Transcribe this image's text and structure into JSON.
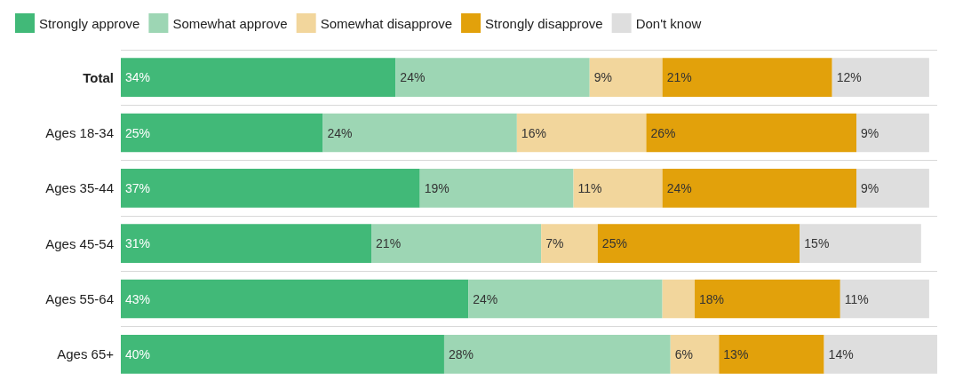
{
  "chart_data": {
    "type": "bar",
    "orientation": "horizontal",
    "stacked": true,
    "categories": [
      "Total",
      "Ages 18-34",
      "Ages 35-44",
      "Ages 45-54",
      "Ages 55-64",
      "Ages 65+"
    ],
    "series": [
      {
        "name": "Strongly approve",
        "color": "#41b978",
        "values": [
          34,
          25,
          37,
          31,
          43,
          40
        ],
        "value_labels": [
          "34%",
          "25%",
          "37%",
          "31%",
          "43%",
          "40%"
        ]
      },
      {
        "name": "Somewhat approve",
        "color": "#9dd6b4",
        "values": [
          24,
          24,
          19,
          21,
          24,
          28
        ],
        "value_labels": [
          "24%",
          "24%",
          "19%",
          "21%",
          "24%",
          "28%"
        ]
      },
      {
        "name": "Somewhat disapprove",
        "color": "#f2d69c",
        "values": [
          9,
          16,
          11,
          7,
          4,
          6
        ],
        "value_labels": [
          "9%",
          "16%",
          "11%",
          "7%",
          null,
          "6%"
        ]
      },
      {
        "name": "Strongly disapprove",
        "color": "#e2a10b",
        "values": [
          21,
          26,
          24,
          25,
          18,
          13
        ],
        "value_labels": [
          "21%",
          "26%",
          "24%",
          "25%",
          "18%",
          "13%"
        ]
      },
      {
        "name": "Don't know",
        "color": "#dedede",
        "values": [
          12,
          9,
          9,
          15,
          11,
          14
        ],
        "value_labels": [
          "12%",
          "9%",
          "9%",
          "15%",
          "11%",
          "14%"
        ]
      }
    ],
    "xlim": [
      0,
      101
    ],
    "tick_labels": "y",
    "grid": "y",
    "legend": "top left"
  }
}
